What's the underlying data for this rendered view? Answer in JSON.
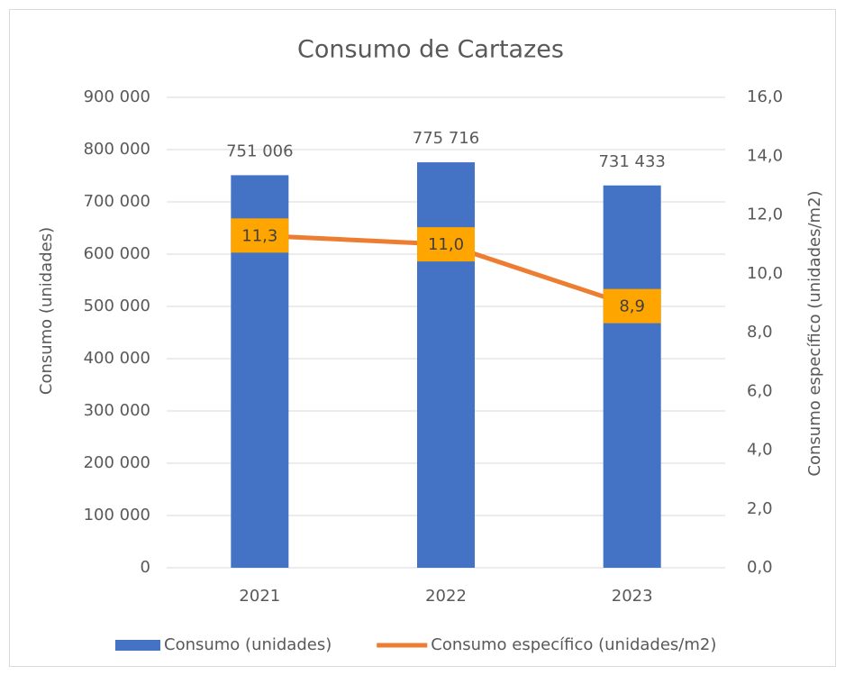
{
  "chart_data": {
    "type": "combo",
    "title": "Consumo de Cartazes",
    "y_label": "Consumo (unidades)",
    "y2_label": "Consumo específico (unidades/m2)",
    "categories": [
      "2021",
      "2022",
      "2023"
    ],
    "series": [
      {
        "name": "Consumo (unidades)",
        "type": "bar",
        "color": "#4472c4",
        "values": [
          751006,
          775716,
          731433
        ],
        "value_labels": [
          "751 006",
          "775 716",
          "731 433"
        ]
      },
      {
        "name": "Consumo específico (unidades/m2)",
        "type": "line",
        "axis": "y2",
        "color": "#ed7d31",
        "label_color": "#ffa500",
        "values": [
          11.3,
          11.0,
          8.9
        ],
        "value_labels": [
          "11,3",
          "11,0",
          "8,9"
        ]
      }
    ],
    "ylim": [
      0,
      900000
    ],
    "yticks": [
      {
        "value": 0,
        "label": "0"
      },
      {
        "value": 100000,
        "label": "100 000"
      },
      {
        "value": 200000,
        "label": "200 000"
      },
      {
        "value": 300000,
        "label": "300 000"
      },
      {
        "value": 400000,
        "label": "400 000"
      },
      {
        "value": 500000,
        "label": "500 000"
      },
      {
        "value": 600000,
        "label": "600 000"
      },
      {
        "value": 700000,
        "label": "700 000"
      },
      {
        "value": 800000,
        "label": "800 000"
      },
      {
        "value": 900000,
        "label": "900 000"
      }
    ],
    "y2lim": [
      0,
      16
    ],
    "y2ticks": [
      {
        "value": 0,
        "label": "0,0"
      },
      {
        "value": 2,
        "label": "2,0"
      },
      {
        "value": 4,
        "label": "4,0"
      },
      {
        "value": 6,
        "label": "6,0"
      },
      {
        "value": 8,
        "label": "8,0"
      },
      {
        "value": 10,
        "label": "10,0"
      },
      {
        "value": 12,
        "label": "12,0"
      },
      {
        "value": 14,
        "label": "14,0"
      },
      {
        "value": 16,
        "label": "16,0"
      }
    ],
    "grid": true,
    "legend": "bottom"
  }
}
